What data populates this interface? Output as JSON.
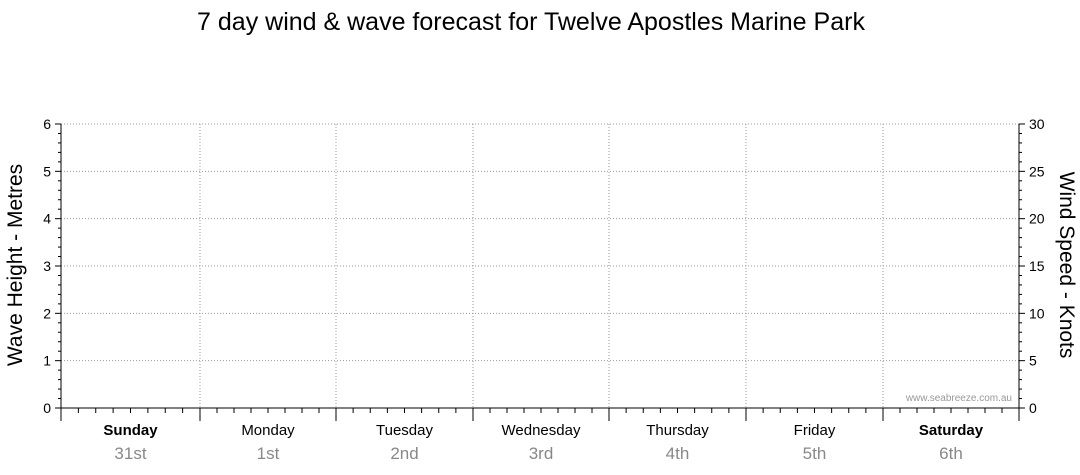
{
  "chart_data": {
    "type": "line",
    "title": "7 day wind & wave forecast for Twelve Apostles Marine Park",
    "ylabel_left": "Wave Height - Metres",
    "ylabel_right": "Wind Speed - Knots",
    "ylim_left": [
      0,
      6
    ],
    "ylim_right": [
      0,
      30
    ],
    "yticks_left": [
      "0",
      "1",
      "2",
      "3",
      "4",
      "5",
      "6"
    ],
    "yticks_right": [
      "0",
      "5",
      "10",
      "15",
      "20",
      "25",
      "30"
    ],
    "grid": true,
    "days": [
      {
        "name": "Sunday",
        "date": "31st",
        "weekend": true
      },
      {
        "name": "Monday",
        "date": "1st",
        "weekend": false
      },
      {
        "name": "Tuesday",
        "date": "2nd",
        "weekend": false
      },
      {
        "name": "Wednesday",
        "date": "3rd",
        "weekend": false
      },
      {
        "name": "Thursday",
        "date": "4th",
        "weekend": false
      },
      {
        "name": "Friday",
        "date": "5th",
        "weekend": false
      },
      {
        "name": "Saturday",
        "date": "6th",
        "weekend": true
      }
    ],
    "series": [],
    "watermark": "www.seabreeze.com.au"
  },
  "colors": {
    "axis": "#000000",
    "grid": "#9a9a9a",
    "date": "#888888",
    "watermark": "#999999"
  }
}
